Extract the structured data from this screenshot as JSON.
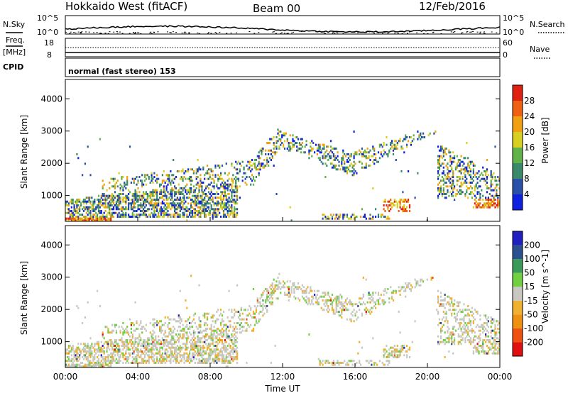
{
  "header": {
    "radar": "Hokkaido West (fitACF)",
    "beam": "Beam 00",
    "date": "12/Feb/2016"
  },
  "left_labels": {
    "nsky": "N.Sky",
    "freq": "Freq.",
    "mhz": "[MHz]",
    "cpid": "CPID",
    "nsky_top": "10^5",
    "nsky_bottom": "10^0",
    "freq_top": "18",
    "freq_bottom": "8"
  },
  "right_labels": {
    "nsearch": "N.Search",
    "nave": "Nave",
    "nsearch_top": "10^5",
    "nsearch_bottom": "10^0",
    "nave_top": "60",
    "nave_bottom": "0"
  },
  "cpid_text": "normal (fast stereo) 153",
  "chart_data": [
    {
      "type": "heatmap",
      "name": "power",
      "ylabel": "Slant Range [km]",
      "yticks": [
        "1000",
        "2000",
        "3000",
        "4000"
      ],
      "ylim": [
        200,
        4600
      ],
      "xlim_hours": [
        0,
        24
      ],
      "colorbar_label": "Power [dB]",
      "colorbar_ticks": [
        "4",
        "8",
        "12",
        "16",
        "20",
        "24",
        "28"
      ],
      "colorbar_colors": [
        "#1020e0",
        "#2a50a8",
        "#3a8a6a",
        "#62b24a",
        "#d8d020",
        "#f0a010",
        "#f06010",
        "#e02010"
      ]
    },
    {
      "type": "heatmap",
      "name": "velocity",
      "ylabel": "Slant Range [km]",
      "yticks": [
        "1000",
        "2000",
        "3000",
        "4000"
      ],
      "ylim": [
        200,
        4600
      ],
      "xlim_hours": [
        0,
        24
      ],
      "colorbar_label": "Velocity [m s^-1]",
      "colorbar_ticks": [
        "-200",
        "-100",
        "-50",
        "-15",
        "15",
        "50",
        "100",
        "200"
      ],
      "colorbar_colors": [
        "#e01010",
        "#f05010",
        "#f09010",
        "#f0b030",
        "#c8c8c0",
        "#70d040",
        "#3a9a5a",
        "#2a5090",
        "#2020c0"
      ],
      "xlabel": "Time UT",
      "xticks": [
        "00:00",
        "04:00",
        "08:00",
        "12:00",
        "16:00",
        "20:00",
        "00:00"
      ]
    }
  ]
}
